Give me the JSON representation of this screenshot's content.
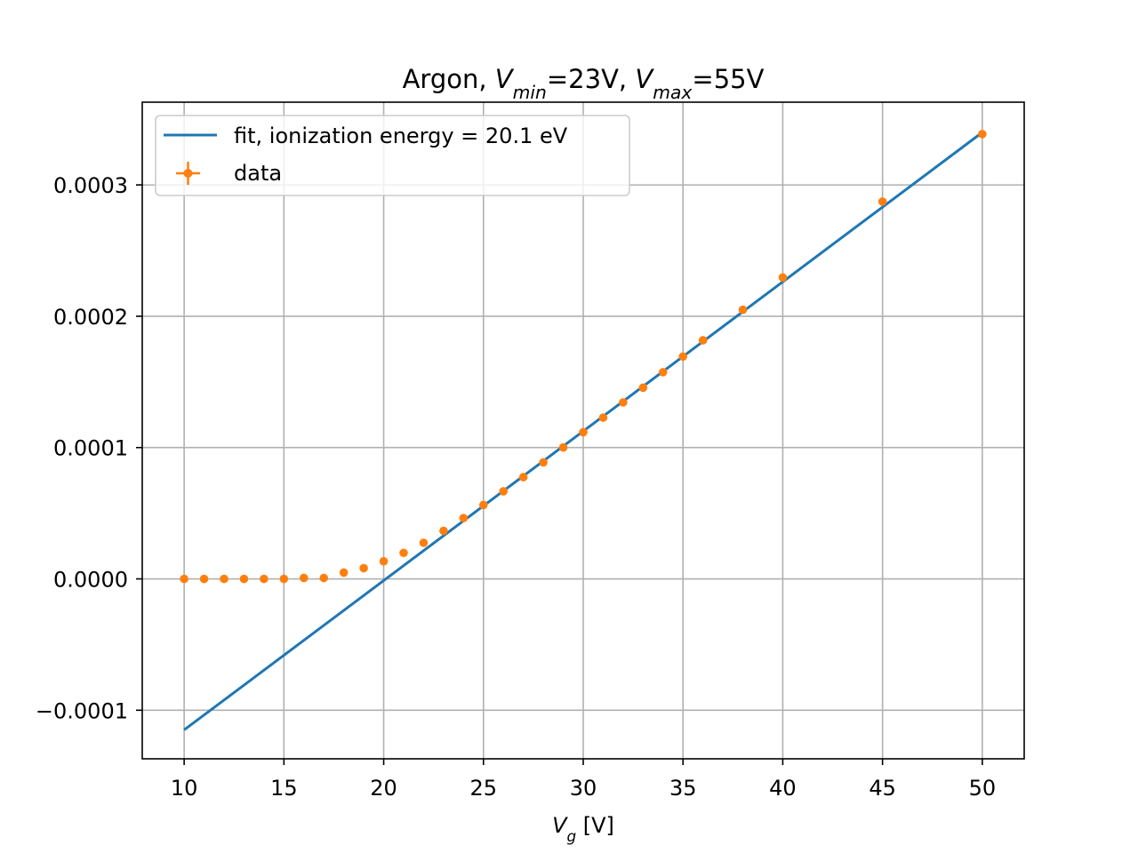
{
  "chart_data": {
    "type": "scatter",
    "title_parts": [
      {
        "text": "Argon, ",
        "italic": false
      },
      {
        "text": "V",
        "italic": true
      },
      {
        "text": "min",
        "italic": true,
        "sub": true
      },
      {
        "text": "=23V, ",
        "italic": false
      },
      {
        "text": "V",
        "italic": true
      },
      {
        "text": "max",
        "italic": true,
        "sub": true
      },
      {
        "text": "=55V",
        "italic": false
      }
    ],
    "xlabel_parts": [
      {
        "text": "V",
        "italic": true
      },
      {
        "text": "g",
        "italic": true,
        "sub": true
      },
      {
        "text": " [V]",
        "italic": false
      }
    ],
    "ylabel": "",
    "xlim": [
      7.9,
      52.1
    ],
    "ylim": [
      -0.000137,
      0.000363
    ],
    "xticks": [
      10,
      15,
      20,
      25,
      30,
      35,
      40,
      45,
      50
    ],
    "xtick_labels": [
      "10",
      "15",
      "20",
      "25",
      "30",
      "35",
      "40",
      "45",
      "50"
    ],
    "yticks": [
      -0.0001,
      0.0,
      0.0001,
      0.0002,
      0.0003
    ],
    "ytick_labels": [
      "−0.0001",
      "0.0000",
      "0.0001",
      "0.0002",
      "0.0003"
    ],
    "grid": true,
    "legend_position": "upper-left",
    "series": [
      {
        "name": "fit, ionization energy = 20.1 eV",
        "kind": "line",
        "color": "#1f77b4",
        "x": [
          10,
          50
        ],
        "y": [
          -0.000115,
          0.00034
        ]
      },
      {
        "name": "data",
        "kind": "errorbar-points",
        "color": "#ff7f0e",
        "x": [
          10,
          11,
          12,
          13,
          14,
          15,
          16,
          17,
          18,
          19,
          20,
          21,
          22,
          23,
          24,
          25,
          26,
          27,
          28,
          29,
          30,
          31,
          32,
          33,
          34,
          35,
          36,
          38,
          40,
          45,
          50
        ],
        "y": [
          0.0,
          0.0,
          0.0,
          0.0,
          0.0,
          0.0,
          7e-07,
          7e-07,
          4.8e-06,
          8.2e-06,
          1.34e-05,
          1.98e-05,
          2.75e-05,
          3.66e-05,
          4.63e-05,
          5.63e-05,
          6.67e-05,
          7.75e-05,
          8.87e-05,
          0.0001001,
          0.0001117,
          0.0001228,
          0.0001344,
          0.0001456,
          0.0001574,
          0.0001693,
          0.0001817,
          0.0002049,
          0.0002295,
          0.0002873,
          0.0003387
        ]
      }
    ]
  }
}
